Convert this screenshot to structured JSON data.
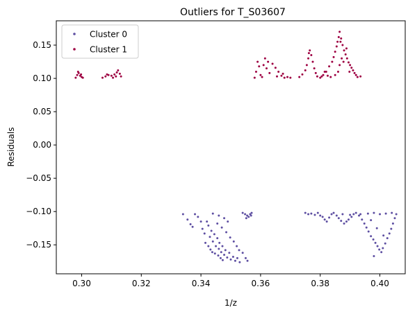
{
  "chart_data": {
    "type": "scatter",
    "title": "Outliers for T_S03607",
    "xlabel": "1/z",
    "ylabel": "Residuals",
    "xlim": [
      0.2915,
      0.4085
    ],
    "ylim": [
      -0.1935,
      0.1865
    ],
    "xticks": [
      0.3,
      0.32,
      0.34,
      0.36,
      0.38,
      0.4
    ],
    "xtick_labels": [
      "0.30",
      "0.32",
      "0.34",
      "0.36",
      "0.38",
      "0.40"
    ],
    "yticks": [
      -0.15,
      -0.1,
      -0.05,
      0.0,
      0.05,
      0.1,
      0.15
    ],
    "ytick_labels": [
      "−0.15",
      "−0.10",
      "−0.05",
      "0.00",
      "0.05",
      "0.10",
      "0.15"
    ],
    "grid": false,
    "legend_position": "top-left",
    "series": [
      {
        "name": "Cluster 0",
        "color": "#5e4fa2",
        "points": [
          [
            0.334,
            -0.104
          ],
          [
            0.3355,
            -0.112
          ],
          [
            0.3365,
            -0.119
          ],
          [
            0.3372,
            -0.123
          ],
          [
            0.338,
            -0.104
          ],
          [
            0.339,
            -0.108
          ],
          [
            0.34,
            -0.115
          ],
          [
            0.3405,
            -0.126
          ],
          [
            0.3412,
            -0.133
          ],
          [
            0.342,
            -0.115
          ],
          [
            0.3425,
            -0.121
          ],
          [
            0.343,
            -0.138
          ],
          [
            0.3435,
            -0.129
          ],
          [
            0.344,
            -0.145
          ],
          [
            0.3445,
            -0.134
          ],
          [
            0.345,
            -0.152
          ],
          [
            0.3455,
            -0.14
          ],
          [
            0.346,
            -0.156
          ],
          [
            0.3462,
            -0.147
          ],
          [
            0.3468,
            -0.161
          ],
          [
            0.3472,
            -0.152
          ],
          [
            0.3478,
            -0.165
          ],
          [
            0.3482,
            -0.158
          ],
          [
            0.3488,
            -0.169
          ],
          [
            0.3495,
            -0.162
          ],
          [
            0.35,
            -0.172
          ],
          [
            0.3508,
            -0.168
          ],
          [
            0.3515,
            -0.174
          ],
          [
            0.3522,
            -0.17
          ],
          [
            0.353,
            -0.176
          ],
          [
            0.3455,
            -0.118
          ],
          [
            0.347,
            -0.124
          ],
          [
            0.3485,
            -0.131
          ],
          [
            0.3498,
            -0.139
          ],
          [
            0.351,
            -0.145
          ],
          [
            0.352,
            -0.152
          ],
          [
            0.3528,
            -0.158
          ],
          [
            0.354,
            -0.162
          ],
          [
            0.355,
            -0.17
          ],
          [
            0.3556,
            -0.174
          ],
          [
            0.344,
            -0.103
          ],
          [
            0.346,
            -0.106
          ],
          [
            0.3478,
            -0.11
          ],
          [
            0.349,
            -0.115
          ],
          [
            0.3415,
            -0.147
          ],
          [
            0.3425,
            -0.152
          ],
          [
            0.3432,
            -0.157
          ],
          [
            0.3438,
            -0.161
          ],
          [
            0.3447,
            -0.163
          ],
          [
            0.3458,
            -0.166
          ],
          [
            0.3466,
            -0.17
          ],
          [
            0.3473,
            -0.173
          ],
          [
            0.354,
            -0.102
          ],
          [
            0.3548,
            -0.104
          ],
          [
            0.3555,
            -0.106
          ],
          [
            0.356,
            -0.108
          ],
          [
            0.3565,
            -0.104
          ],
          [
            0.357,
            -0.102
          ],
          [
            0.3552,
            -0.11
          ],
          [
            0.3568,
            -0.106
          ],
          [
            0.375,
            -0.102
          ],
          [
            0.376,
            -0.104
          ],
          [
            0.377,
            -0.103
          ],
          [
            0.3782,
            -0.105
          ],
          [
            0.3792,
            -0.102
          ],
          [
            0.38,
            -0.106
          ],
          [
            0.3808,
            -0.108
          ],
          [
            0.3815,
            -0.112
          ],
          [
            0.3822,
            -0.115
          ],
          [
            0.383,
            -0.109
          ],
          [
            0.3838,
            -0.104
          ],
          [
            0.3845,
            -0.102
          ],
          [
            0.3855,
            -0.106
          ],
          [
            0.3862,
            -0.11
          ],
          [
            0.387,
            -0.114
          ],
          [
            0.388,
            -0.118
          ],
          [
            0.3888,
            -0.115
          ],
          [
            0.3895,
            -0.112
          ],
          [
            0.3905,
            -0.108
          ],
          [
            0.3912,
            -0.104
          ],
          [
            0.392,
            -0.102
          ],
          [
            0.393,
            -0.106
          ],
          [
            0.394,
            -0.112
          ],
          [
            0.3948,
            -0.118
          ],
          [
            0.3955,
            -0.124
          ],
          [
            0.3962,
            -0.13
          ],
          [
            0.397,
            -0.137
          ],
          [
            0.3978,
            -0.142
          ],
          [
            0.3985,
            -0.147
          ],
          [
            0.3992,
            -0.152
          ],
          [
            0.3998,
            -0.157
          ],
          [
            0.4005,
            -0.161
          ],
          [
            0.401,
            -0.155
          ],
          [
            0.4018,
            -0.148
          ],
          [
            0.4025,
            -0.14
          ],
          [
            0.4032,
            -0.133
          ],
          [
            0.4038,
            -0.126
          ],
          [
            0.4044,
            -0.118
          ],
          [
            0.405,
            -0.11
          ],
          [
            0.4055,
            -0.104
          ],
          [
            0.404,
            -0.102
          ],
          [
            0.402,
            -0.103
          ],
          [
            0.4,
            -0.104
          ],
          [
            0.398,
            -0.102
          ],
          [
            0.396,
            -0.103
          ],
          [
            0.3935,
            -0.104
          ],
          [
            0.39,
            -0.105
          ],
          [
            0.3875,
            -0.104
          ],
          [
            0.398,
            -0.167
          ],
          [
            0.397,
            -0.113
          ],
          [
            0.399,
            -0.125
          ],
          [
            0.4012,
            -0.136
          ]
        ]
      },
      {
        "name": "Cluster 1",
        "color": "#9e0142",
        "points": [
          [
            0.298,
            0.101
          ],
          [
            0.2985,
            0.105
          ],
          [
            0.299,
            0.108
          ],
          [
            0.2995,
            0.104
          ],
          [
            0.3,
            0.102
          ],
          [
            0.2988,
            0.11
          ],
          [
            0.2998,
            0.106
          ],
          [
            0.3004,
            0.101
          ],
          [
            0.307,
            0.101
          ],
          [
            0.308,
            0.103
          ],
          [
            0.309,
            0.105
          ],
          [
            0.31,
            0.104
          ],
          [
            0.311,
            0.106
          ],
          [
            0.3118,
            0.109
          ],
          [
            0.3122,
            0.112
          ],
          [
            0.3128,
            0.107
          ],
          [
            0.3132,
            0.103
          ],
          [
            0.3105,
            0.101
          ],
          [
            0.3085,
            0.106
          ],
          [
            0.3115,
            0.103
          ],
          [
            0.358,
            0.101
          ],
          [
            0.3585,
            0.11
          ],
          [
            0.359,
            0.125
          ],
          [
            0.3595,
            0.118
          ],
          [
            0.36,
            0.105
          ],
          [
            0.361,
            0.12
          ],
          [
            0.362,
            0.115
          ],
          [
            0.363,
            0.108
          ],
          [
            0.364,
            0.122
          ],
          [
            0.365,
            0.116
          ],
          [
            0.366,
            0.11
          ],
          [
            0.367,
            0.104
          ],
          [
            0.368,
            0.101
          ],
          [
            0.369,
            0.102
          ],
          [
            0.37,
            0.101
          ],
          [
            0.3605,
            0.102
          ],
          [
            0.3625,
            0.125
          ],
          [
            0.3655,
            0.103
          ],
          [
            0.3675,
            0.107
          ],
          [
            0.3615,
            0.13
          ],
          [
            0.373,
            0.102
          ],
          [
            0.374,
            0.106
          ],
          [
            0.375,
            0.112
          ],
          [
            0.3755,
            0.12
          ],
          [
            0.376,
            0.13
          ],
          [
            0.3762,
            0.138
          ],
          [
            0.3765,
            0.142
          ],
          [
            0.377,
            0.135
          ],
          [
            0.3775,
            0.125
          ],
          [
            0.378,
            0.115
          ],
          [
            0.3785,
            0.108
          ],
          [
            0.379,
            0.103
          ],
          [
            0.38,
            0.101
          ],
          [
            0.381,
            0.105
          ],
          [
            0.382,
            0.11
          ],
          [
            0.383,
            0.118
          ],
          [
            0.384,
            0.125
          ],
          [
            0.3845,
            0.132
          ],
          [
            0.385,
            0.14
          ],
          [
            0.3855,
            0.148
          ],
          [
            0.3858,
            0.155
          ],
          [
            0.3862,
            0.162
          ],
          [
            0.3865,
            0.17
          ],
          [
            0.387,
            0.16
          ],
          [
            0.3875,
            0.15
          ],
          [
            0.388,
            0.142
          ],
          [
            0.3885,
            0.136
          ],
          [
            0.389,
            0.13
          ],
          [
            0.3895,
            0.124
          ],
          [
            0.39,
            0.12
          ],
          [
            0.3905,
            0.116
          ],
          [
            0.391,
            0.112
          ],
          [
            0.3915,
            0.108
          ],
          [
            0.392,
            0.105
          ],
          [
            0.3925,
            0.102
          ],
          [
            0.3935,
            0.103
          ],
          [
            0.385,
            0.105
          ],
          [
            0.386,
            0.11
          ],
          [
            0.3865,
            0.12
          ],
          [
            0.3872,
            0.13
          ],
          [
            0.3835,
            0.102
          ],
          [
            0.3825,
            0.104
          ],
          [
            0.3815,
            0.11
          ],
          [
            0.3805,
            0.103
          ],
          [
            0.3888,
            0.145
          ],
          [
            0.3868,
            0.155
          ],
          [
            0.3878,
            0.125
          ],
          [
            0.3898,
            0.11
          ]
        ]
      }
    ]
  }
}
